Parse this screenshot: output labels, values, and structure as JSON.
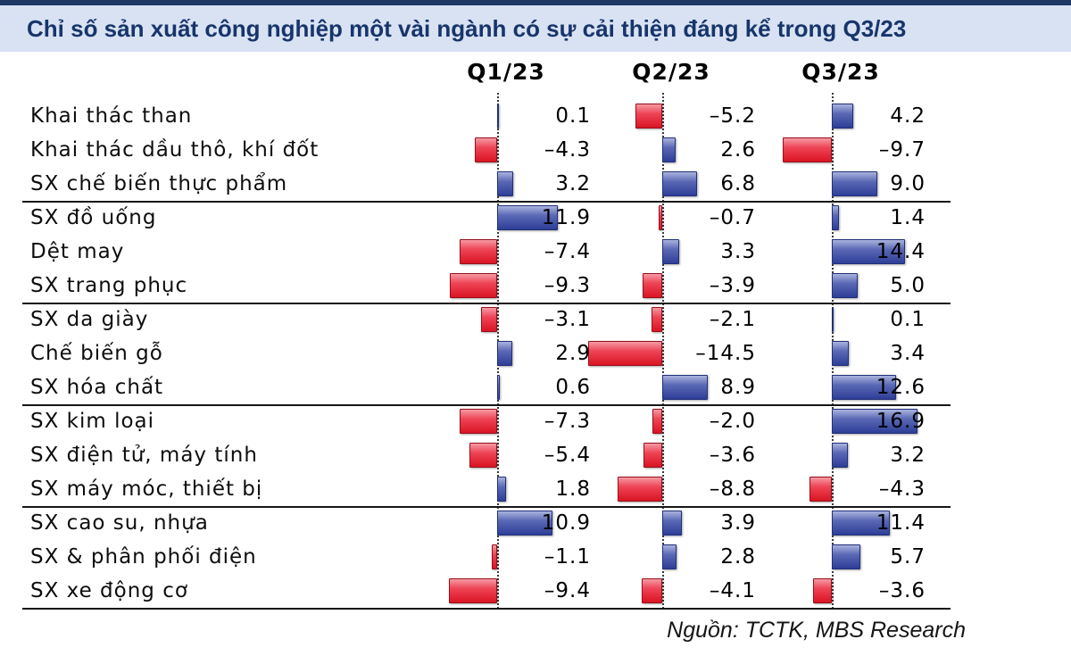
{
  "title": "Chỉ số sản xuất công nghiệp một vài ngành có sự cải thiện đáng kể trong Q3/23",
  "source": "Nguồn: TCTK, MBS Research",
  "theme": {
    "top_stripe": "#1f3864",
    "title_bg": "#d9e2f3",
    "title_text": "#17356b",
    "positive_bar": "#2e3e97",
    "negative_bar": "#da1423"
  },
  "chart_data": {
    "type": "bar",
    "orientation": "horizontal",
    "title": "Chỉ số sản xuất công nghiệp một vài ngành có sự cải thiện đáng kể trong Q3/23",
    "columns": [
      "Q1/23",
      "Q2/23",
      "Q3/23"
    ],
    "categories": [
      "Khai thác than",
      "Khai thác dầu thô, khí đốt",
      "SX chế biến thực phẩm",
      "SX đồ uống",
      "Dệt may",
      "SX trang phục",
      "SX da giày",
      "Chế biến gỗ",
      "SX hóa chất",
      "SX kim loại",
      "SX điện tử, máy tính",
      "SX máy móc, thiết bị",
      "SX cao su, nhựa",
      "SX & phân phối điện",
      "SX xe động cơ"
    ],
    "series": [
      {
        "name": "Q1/23",
        "values": [
          0.1,
          -4.3,
          3.2,
          11.9,
          -7.4,
          -9.3,
          -3.1,
          2.9,
          0.6,
          -7.3,
          -5.4,
          1.8,
          10.9,
          -1.1,
          -9.4
        ]
      },
      {
        "name": "Q2/23",
        "values": [
          -5.2,
          2.6,
          6.8,
          -0.7,
          3.3,
          -3.9,
          -2.1,
          -14.5,
          8.9,
          -2.0,
          -3.6,
          -8.8,
          3.9,
          2.8,
          -4.1
        ]
      },
      {
        "name": "Q3/23",
        "values": [
          4.2,
          -9.7,
          9.0,
          1.4,
          14.4,
          5.0,
          0.1,
          3.4,
          12.6,
          16.9,
          3.2,
          -4.3,
          11.4,
          5.7,
          -3.6
        ]
      }
    ],
    "group_separators_after": [
      2,
      5,
      8,
      11,
      14
    ],
    "legend_position": "none",
    "grid": "dotted-vertical-axes-per-column"
  }
}
